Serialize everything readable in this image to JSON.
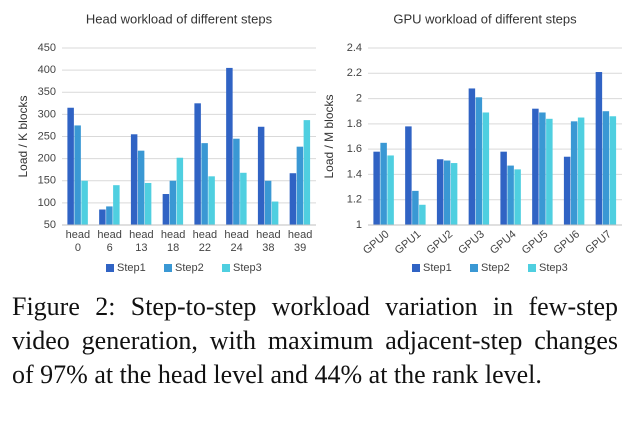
{
  "chart_data": [
    {
      "type": "bar",
      "title": "Head workload of different steps",
      "y_label": "Load / K blocks",
      "categories": [
        "head 0",
        "head 6",
        "head 13",
        "head 18",
        "head 22",
        "head 24",
        "head 38",
        "head 39"
      ],
      "series": [
        {
          "name": "Step1",
          "color": "#3063c4",
          "values": [
            315,
            85,
            255,
            120,
            325,
            405,
            272,
            167
          ]
        },
        {
          "name": "Step2",
          "color": "#3a98d4",
          "values": [
            275,
            92,
            218,
            150,
            235,
            245,
            150,
            227
          ]
        },
        {
          "name": "Step3",
          "color": "#4fcfe0",
          "values": [
            150,
            140,
            145,
            202,
            160,
            168,
            103,
            287
          ]
        }
      ],
      "ylim": [
        50,
        450
      ],
      "yticks": [
        50,
        100,
        150,
        200,
        250,
        300,
        350,
        400,
        450
      ],
      "grid": true,
      "legend": "bottom"
    },
    {
      "type": "bar",
      "title": "GPU workload of different steps",
      "y_label": "Load / M blocks",
      "categories": [
        "GPU0",
        "GPU1",
        "GPU2",
        "GPU3",
        "GPU4",
        "GPU5",
        "GPU6",
        "GPU7"
      ],
      "series": [
        {
          "name": "Step1",
          "color": "#3063c4",
          "values": [
            1.58,
            1.78,
            1.52,
            2.08,
            1.58,
            1.92,
            1.54,
            2.21
          ]
        },
        {
          "name": "Step2",
          "color": "#3a98d4",
          "values": [
            1.65,
            1.27,
            1.51,
            2.01,
            1.47,
            1.89,
            1.82,
            1.9
          ]
        },
        {
          "name": "Step3",
          "color": "#4fcfe0",
          "values": [
            1.55,
            1.16,
            1.49,
            1.89,
            1.44,
            1.84,
            1.85,
            1.86
          ]
        }
      ],
      "ylim": [
        1,
        2.4
      ],
      "yticks": [
        1,
        1.2,
        1.4,
        1.6,
        1.8,
        2,
        2.2,
        2.4
      ],
      "grid": true,
      "legend": "bottom",
      "rotate_x_labels": true
    }
  ],
  "caption": "Figure 2: Step-to-step workload variation in few-step video generation, with maximum adjacent-step changes of 97% at the head level and 44% at the rank level."
}
